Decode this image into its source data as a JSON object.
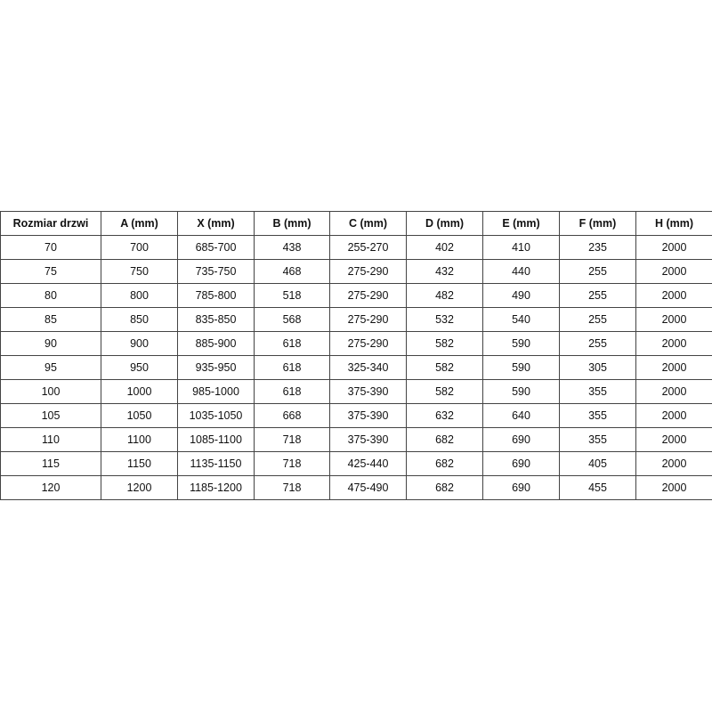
{
  "table": {
    "headers": [
      "Rozmiar drzwi",
      "A (mm)",
      "X (mm)",
      "B (mm)",
      "C (mm)",
      "D (mm)",
      "E (mm)",
      "F (mm)",
      "H (mm)"
    ],
    "rows": [
      [
        "70",
        "700",
        "685-700",
        "438",
        "255-270",
        "402",
        "410",
        "235",
        "2000"
      ],
      [
        "75",
        "750",
        "735-750",
        "468",
        "275-290",
        "432",
        "440",
        "255",
        "2000"
      ],
      [
        "80",
        "800",
        "785-800",
        "518",
        "275-290",
        "482",
        "490",
        "255",
        "2000"
      ],
      [
        "85",
        "850",
        "835-850",
        "568",
        "275-290",
        "532",
        "540",
        "255",
        "2000"
      ],
      [
        "90",
        "900",
        "885-900",
        "618",
        "275-290",
        "582",
        "590",
        "255",
        "2000"
      ],
      [
        "95",
        "950",
        "935-950",
        "618",
        "325-340",
        "582",
        "590",
        "305",
        "2000"
      ],
      [
        "100",
        "1000",
        "985-1000",
        "618",
        "375-390",
        "582",
        "590",
        "355",
        "2000"
      ],
      [
        "105",
        "1050",
        "1035-1050",
        "668",
        "375-390",
        "632",
        "640",
        "355",
        "2000"
      ],
      [
        "110",
        "1100",
        "1085-1100",
        "718",
        "375-390",
        "682",
        "690",
        "355",
        "2000"
      ],
      [
        "115",
        "1150",
        "1135-1150",
        "718",
        "425-440",
        "682",
        "690",
        "405",
        "2000"
      ],
      [
        "120",
        "1200",
        "1185-1200",
        "718",
        "475-490",
        "682",
        "690",
        "455",
        "2000"
      ]
    ]
  }
}
